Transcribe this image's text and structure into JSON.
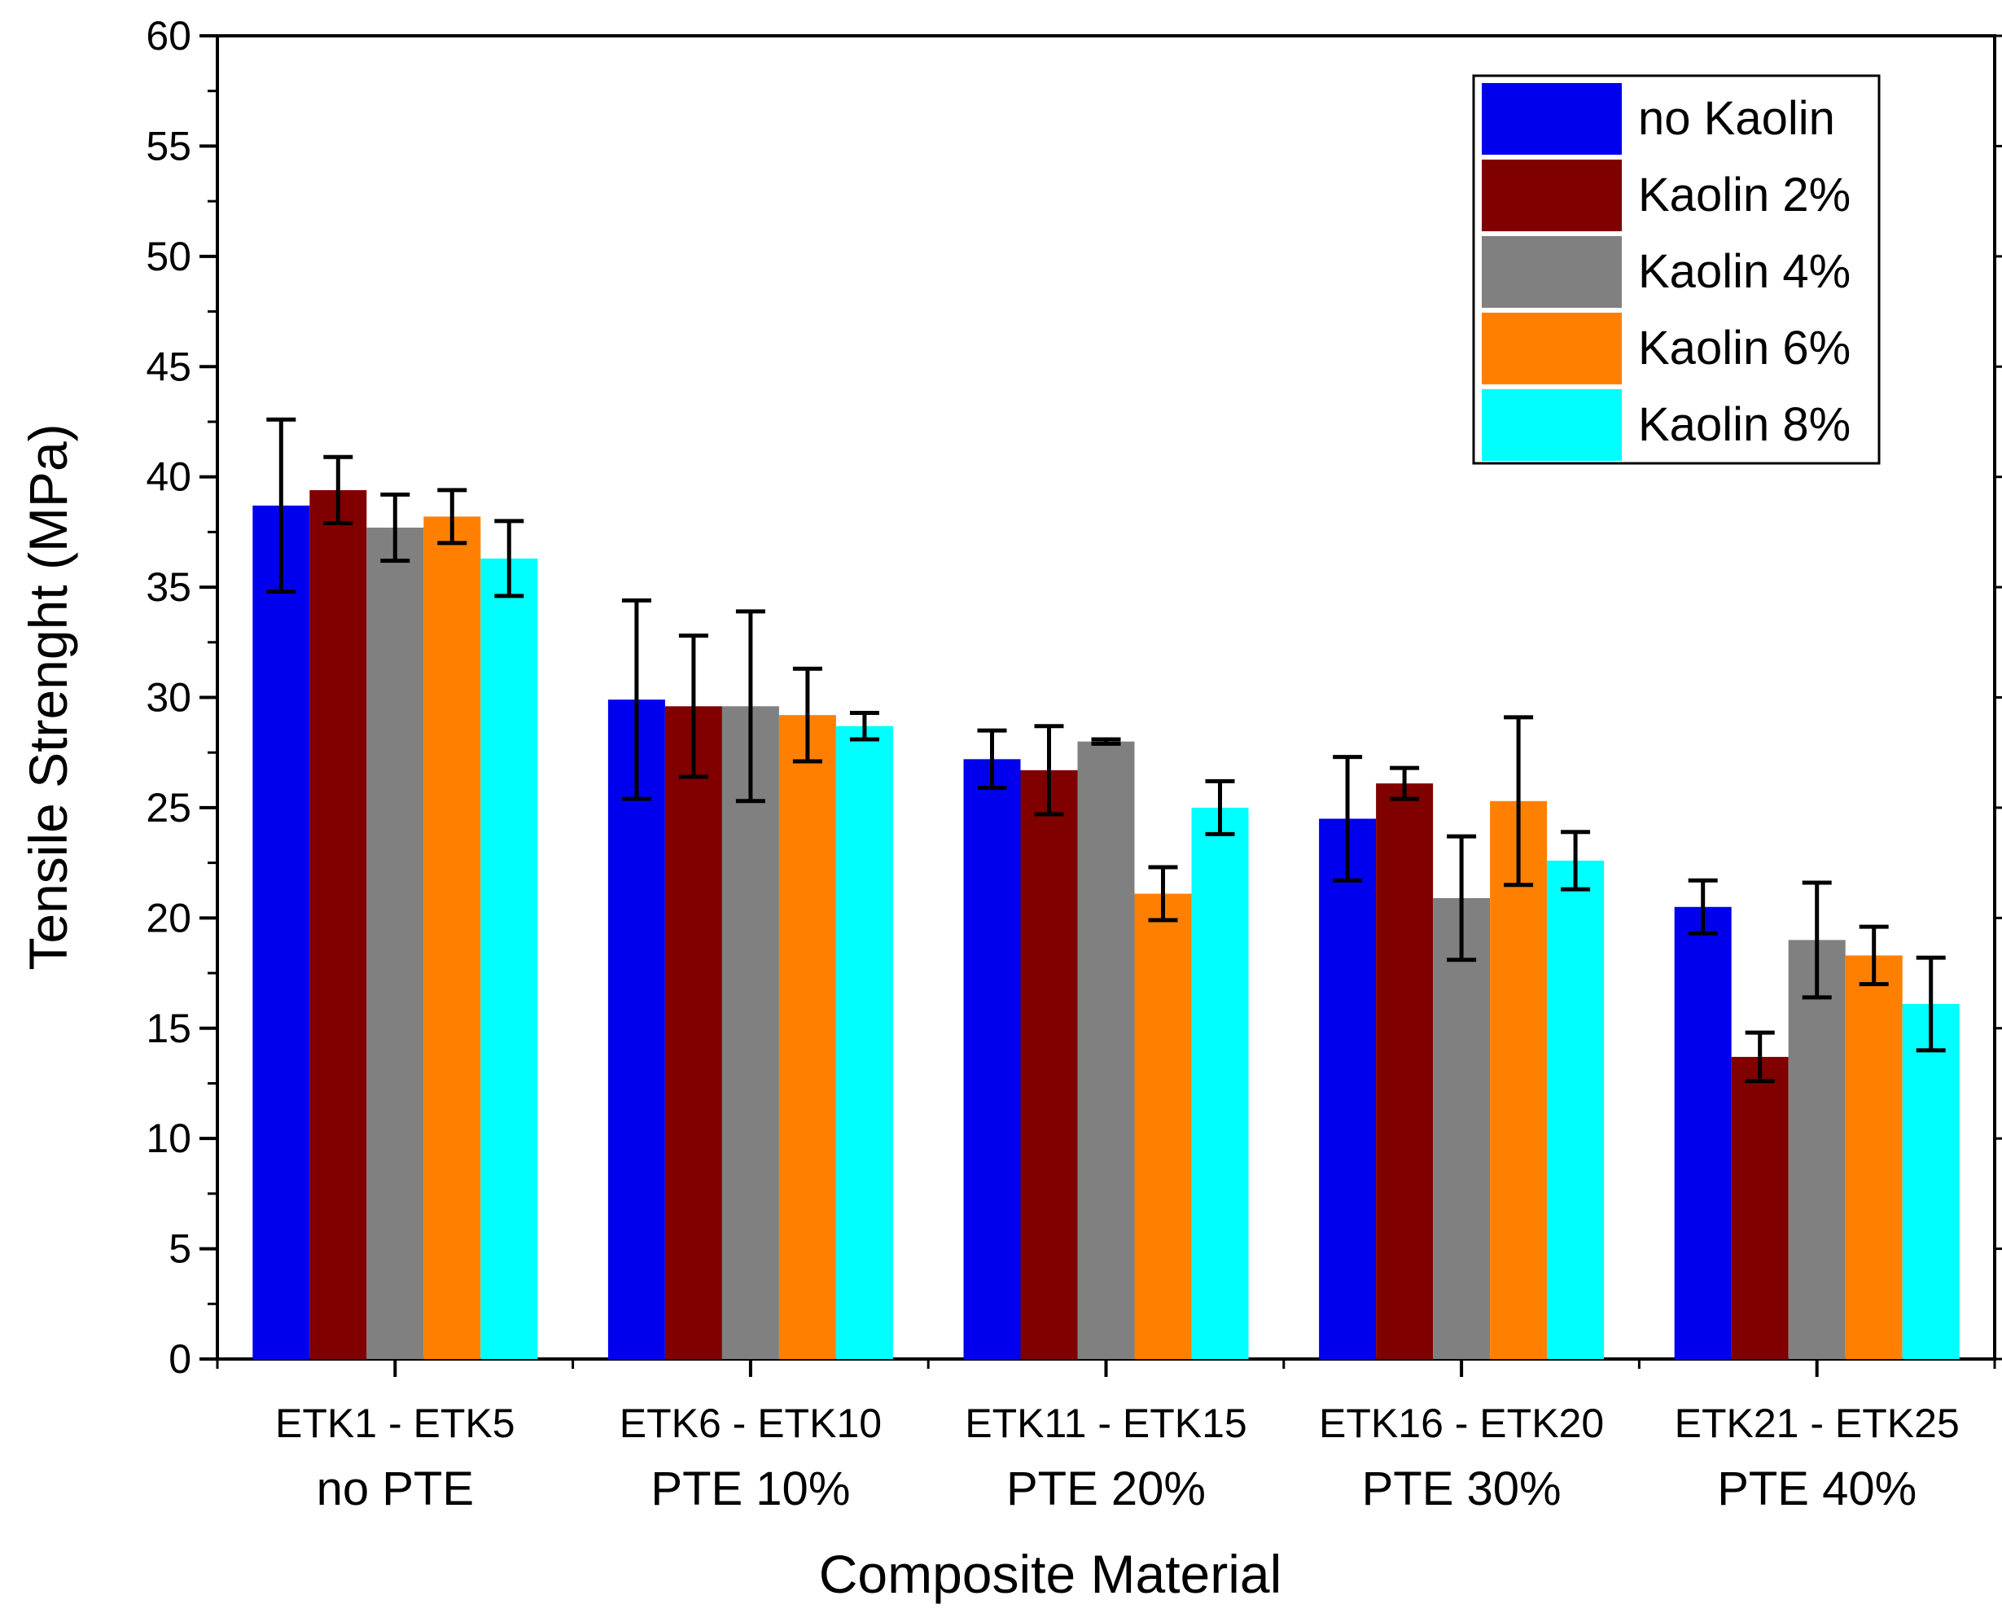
{
  "chart_data": {
    "type": "bar",
    "title": "",
    "xlabel": "Composite Material",
    "ylabel": "Tensile Strenght (MPa)",
    "ylim": [
      0,
      60
    ],
    "yticks": [
      "0",
      "5",
      "10",
      "15",
      "20",
      "25",
      "30",
      "35",
      "40",
      "45",
      "50",
      "55",
      "60"
    ],
    "categories": [
      {
        "line1": "ETK1 - ETK5",
        "line2": "no PTE"
      },
      {
        "line1": "ETK6 - ETK10",
        "line2": "PTE 10%"
      },
      {
        "line1": "ETK11 - ETK15",
        "line2": "PTE 20%"
      },
      {
        "line1": "ETK16 - ETK20",
        "line2": "PTE 30%"
      },
      {
        "line1": "ETK21 - ETK25",
        "line2": "PTE 40%"
      }
    ],
    "series": [
      {
        "name": "no Kaolin",
        "color": "#0000ee",
        "values": [
          38.7,
          29.9,
          27.2,
          24.5,
          20.5
        ],
        "errors": [
          3.9,
          4.5,
          1.3,
          2.8,
          1.2
        ]
      },
      {
        "name": "Kaolin 2%",
        "color": "#800000",
        "values": [
          39.4,
          29.6,
          26.7,
          26.1,
          13.7
        ],
        "errors": [
          1.5,
          3.2,
          2.0,
          0.7,
          1.1
        ]
      },
      {
        "name": "Kaolin 4%",
        "color": "#808080",
        "values": [
          37.7,
          29.6,
          28.0,
          20.9,
          19.0
        ],
        "errors": [
          1.5,
          4.3,
          0.1,
          2.8,
          2.6
        ]
      },
      {
        "name": "Kaolin 6%",
        "color": "#ff8000",
        "values": [
          38.2,
          29.2,
          21.1,
          25.3,
          18.3
        ],
        "errors": [
          1.2,
          2.1,
          1.2,
          3.8,
          1.3
        ]
      },
      {
        "name": "Kaolin 8%",
        "color": "#00ffff",
        "values": [
          36.3,
          28.7,
          25.0,
          22.6,
          16.1
        ],
        "errors": [
          1.7,
          0.6,
          1.2,
          1.3,
          2.1
        ]
      }
    ],
    "legend_position": "top-right",
    "error_bars": true
  }
}
